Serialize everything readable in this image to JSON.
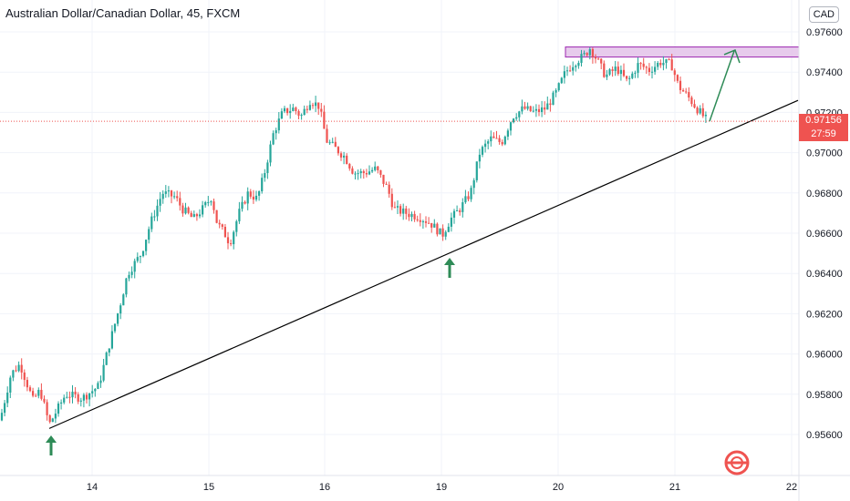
{
  "header": {
    "title": "Australian Dollar/Canadian Dollar, 45, FXCM",
    "currency_label": "CAD"
  },
  "price_tag": {
    "price": "0.97156",
    "countdown": "27:59"
  },
  "colors": {
    "up": "#26a69a",
    "down": "#ef5350",
    "trendline": "#000000",
    "zone_fill": "#e1bee7",
    "zone_border": "#9c27b0",
    "arrow": "#2e8b57",
    "price_line": "#ef5350",
    "grid": "#f0f3fa"
  },
  "chart_data": {
    "type": "candlestick",
    "x_ticks": [
      "14",
      "15",
      "16",
      "19",
      "20",
      "21",
      "22"
    ],
    "y_ticks": [
      "0.95600",
      "0.95800",
      "0.96000",
      "0.96200",
      "0.96400",
      "0.96600",
      "0.96800",
      "0.97000",
      "0.97200",
      "0.97400",
      "0.97600"
    ],
    "ylim": [
      0.9542,
      0.9768
    ],
    "series_path": [
      [
        0,
        0.9567
      ],
      [
        12,
        0.959
      ],
      [
        22,
        0.9595
      ],
      [
        36,
        0.9577
      ],
      [
        44,
        0.9582
      ],
      [
        54,
        0.9565
      ],
      [
        72,
        0.958
      ],
      [
        90,
        0.9578
      ],
      [
        108,
        0.9584
      ],
      [
        120,
        0.9605
      ],
      [
        132,
        0.9625
      ],
      [
        140,
        0.964
      ],
      [
        155,
        0.965
      ],
      [
        165,
        0.9665
      ],
      [
        178,
        0.968
      ],
      [
        192,
        0.9678
      ],
      [
        200,
        0.9672
      ],
      [
        212,
        0.9667
      ],
      [
        222,
        0.9672
      ],
      [
        232,
        0.9678
      ],
      [
        238,
        0.9665
      ],
      [
        246,
        0.966
      ],
      [
        252,
        0.9655
      ],
      [
        262,
        0.967
      ],
      [
        272,
        0.968
      ],
      [
        282,
        0.9677
      ],
      [
        290,
        0.969
      ],
      [
        300,
        0.971
      ],
      [
        310,
        0.972
      ],
      [
        322,
        0.9722
      ],
      [
        330,
        0.9718
      ],
      [
        340,
        0.9726
      ],
      [
        350,
        0.9723
      ],
      [
        358,
        0.9706
      ],
      [
        368,
        0.9702
      ],
      [
        378,
        0.9698
      ],
      [
        388,
        0.969
      ],
      [
        400,
        0.969
      ],
      [
        412,
        0.9692
      ],
      [
        425,
        0.9682
      ],
      [
        432,
        0.9672
      ],
      [
        445,
        0.967
      ],
      [
        460,
        0.9668
      ],
      [
        472,
        0.9665
      ],
      [
        485,
        0.9659
      ],
      [
        494,
        0.9667
      ],
      [
        504,
        0.9672
      ],
      [
        516,
        0.968
      ],
      [
        526,
        0.97
      ],
      [
        538,
        0.9707
      ],
      [
        550,
        0.9705
      ],
      [
        562,
        0.9718
      ],
      [
        574,
        0.9722
      ],
      [
        586,
        0.972
      ],
      [
        598,
        0.9722
      ],
      [
        610,
        0.973
      ],
      [
        620,
        0.974
      ],
      [
        630,
        0.9745
      ],
      [
        640,
        0.9748
      ],
      [
        647,
        0.9752
      ],
      [
        656,
        0.9745
      ],
      [
        664,
        0.9738
      ],
      [
        676,
        0.9742
      ],
      [
        688,
        0.9735
      ],
      [
        700,
        0.9744
      ],
      [
        712,
        0.9741
      ],
      [
        724,
        0.9745
      ],
      [
        736,
        0.9744
      ],
      [
        744,
        0.9733
      ],
      [
        754,
        0.9728
      ],
      [
        764,
        0.9722
      ],
      [
        775,
        0.9716
      ]
    ],
    "resistance_zone": {
      "y_low": 0.97475,
      "y_high": 0.97525
    },
    "trendline": {
      "p1": [
        54,
        0.9563
      ],
      "p2": [
        875,
        0.9726
      ]
    },
    "projection_arrow": {
      "p1": [
        778,
        0.97156
      ],
      "p2": [
        805,
        0.97505
      ]
    },
    "current_price": 0.97156,
    "support_markers": [
      54,
      491
    ]
  }
}
